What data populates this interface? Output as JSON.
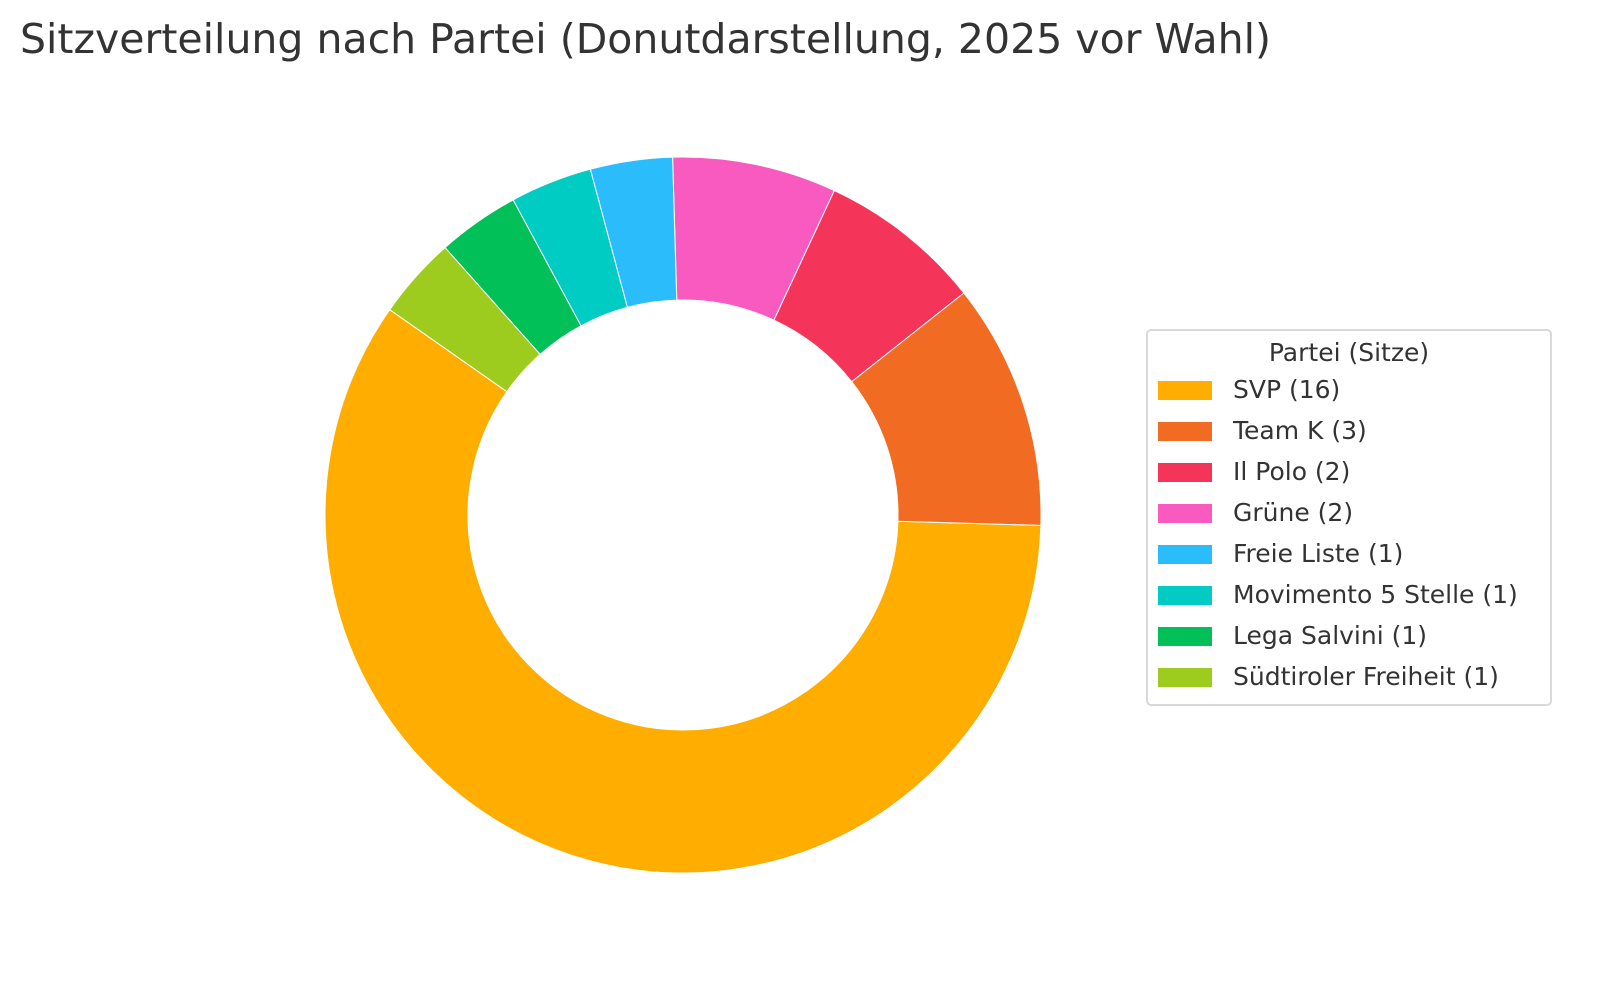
{
  "chart_data": {
    "type": "pie",
    "variant": "donut",
    "title": "Sitzverteilung nach Partei (Donutdarstellung, 2025 vor Wahl)",
    "legend": {
      "title": "Partei (Sitze)",
      "placement": "right"
    },
    "categories": [
      "SVP",
      "Team K",
      "Il Polo",
      "Grüne",
      "Freie Liste",
      "Movimento 5 Stelle",
      "Lega Salvini",
      "Südtiroler Freiheit"
    ],
    "values": [
      16,
      3,
      2,
      2,
      1,
      1,
      1,
      1
    ],
    "labels": [
      "SVP (16)",
      "Team K (3)",
      "Il Polo (2)",
      "Grüne (2)",
      "Freie Liste (1)",
      "Movimento 5 Stelle (1)",
      "Lega Salvini (1)",
      "Südtiroler Freiheit (1)"
    ],
    "colors": [
      "#FFAE00",
      "#F26B22",
      "#F53459",
      "#F85AC0",
      "#2BBDFB",
      "#00CCC4",
      "#00C057",
      "#9ECC1E"
    ],
    "start_angle_deg": 145,
    "direction": "counterclockwise"
  }
}
